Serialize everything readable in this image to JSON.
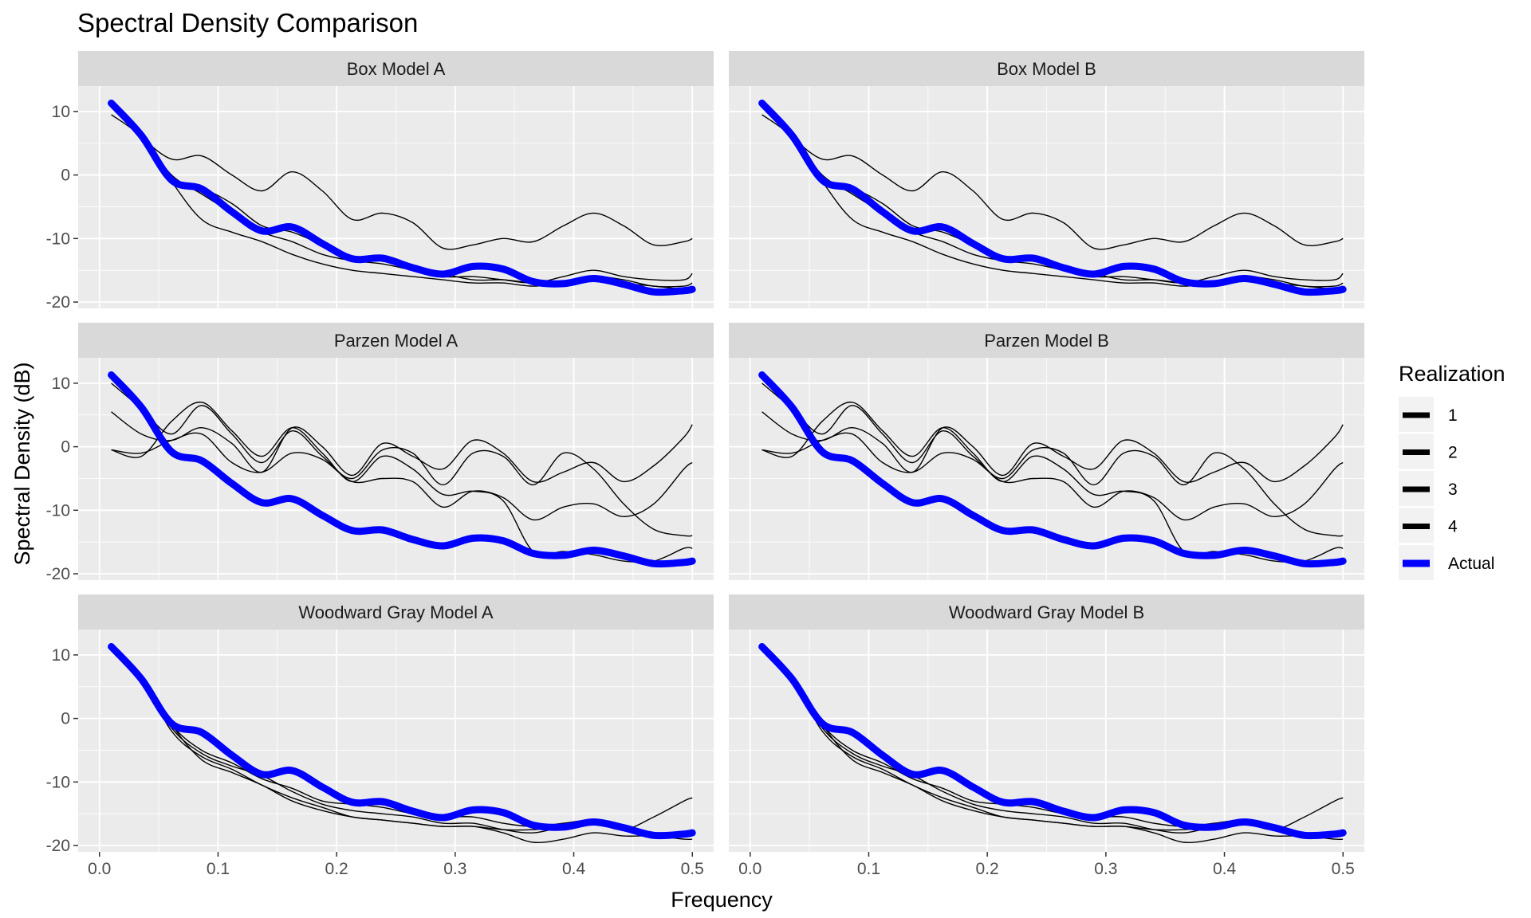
{
  "chart_data": {
    "type": "line",
    "title": "Spectral Density Comparison",
    "xlabel": "Frequency",
    "ylabel": "Spectral Density (dB)",
    "xlim": [
      0,
      0.5
    ],
    "ylim": [
      -21,
      14
    ],
    "x_ticks": [
      0,
      0.1,
      0.2,
      0.3,
      0.4,
      0.5
    ],
    "x_tick_labels": [
      "0.0",
      "0.1",
      "0.2",
      "0.3",
      "0.4",
      "0.5"
    ],
    "y_ticks": [
      -20,
      -10,
      0,
      10
    ],
    "y_tick_labels": [
      "-20",
      "-10",
      "0",
      "10"
    ],
    "grid": true,
    "legend": {
      "title": "Realization",
      "placement": "right",
      "entries": [
        {
          "label": "1",
          "color": "#000000"
        },
        {
          "label": "2",
          "color": "#000000"
        },
        {
          "label": "3",
          "color": "#000000"
        },
        {
          "label": "4",
          "color": "#000000"
        },
        {
          "label": "Actual",
          "color": "#0000ff"
        }
      ]
    },
    "colors": {
      "realization": "#000000",
      "actual": "#0000ff",
      "panel_bg": "#ebebeb",
      "strip_bg": "#d9d9d9",
      "grid": "#ffffff"
    },
    "x": [
      0.01,
      0.0354,
      0.0608,
      0.0862,
      0.1117,
      0.1371,
      0.1625,
      0.1879,
      0.2133,
      0.2387,
      0.2642,
      0.2896,
      0.315,
      0.3404,
      0.3658,
      0.3913,
      0.4167,
      0.4421,
      0.4675,
      0.4929,
      0.5
    ],
    "actual": [
      11.3,
      6.2,
      -0.8,
      -2.2,
      -5.8,
      -8.8,
      -8.2,
      -10.8,
      -13.2,
      -13.1,
      -14.6,
      -15.6,
      -14.4,
      -14.8,
      -16.8,
      -17.1,
      -16.3,
      -17.2,
      -18.4,
      -18.2,
      -18.0
    ],
    "panels": [
      {
        "name": "Box Model A",
        "series": [
          {
            "name": "1",
            "values": [
              11.5,
              6.0,
              -0.5,
              -2.0,
              -4.5,
              -8.0,
              -9.0,
              -11.0,
              -13.0,
              -13.5,
              -14.5,
              -15.5,
              -16.5,
              -16.5,
              -17.0,
              -17.0,
              -16.0,
              -16.5,
              -17.5,
              -17.5,
              -17.0
            ]
          },
          {
            "name": "2",
            "values": [
              11.0,
              6.0,
              2.5,
              3.0,
              0.0,
              -2.5,
              0.5,
              -2.5,
              -7.0,
              -6.0,
              -7.5,
              -11.5,
              -11.0,
              -10.0,
              -10.5,
              -8.0,
              -6.0,
              -8.0,
              -11.0,
              -10.5,
              -10.0
            ]
          },
          {
            "name": "3",
            "values": [
              9.5,
              6.0,
              0.0,
              -3.0,
              -6.0,
              -9.0,
              -10.5,
              -12.5,
              -13.5,
              -14.0,
              -15.0,
              -16.0,
              -16.0,
              -16.5,
              -17.0,
              -16.0,
              -15.0,
              -16.0,
              -16.5,
              -16.5,
              -15.5
            ]
          },
          {
            "name": "4",
            "values": [
              11.5,
              6.5,
              -1.0,
              -7.0,
              -9.0,
              -10.5,
              -12.5,
              -14.0,
              -15.0,
              -15.5,
              -16.0,
              -16.5,
              -17.0,
              -17.0,
              -17.5,
              -17.0,
              -16.0,
              -17.0,
              -17.5,
              -18.0,
              -18.0
            ]
          }
        ]
      },
      {
        "name": "Box Model B",
        "series": [
          {
            "name": "1",
            "values": [
              11.5,
              6.0,
              -0.5,
              -2.0,
              -4.5,
              -8.0,
              -9.0,
              -11.0,
              -13.0,
              -13.5,
              -14.5,
              -15.5,
              -16.5,
              -16.5,
              -17.0,
              -17.0,
              -16.0,
              -16.5,
              -17.5,
              -17.5,
              -17.0
            ]
          },
          {
            "name": "2",
            "values": [
              11.0,
              6.0,
              2.5,
              3.0,
              0.0,
              -2.5,
              0.5,
              -2.5,
              -7.0,
              -6.0,
              -7.5,
              -11.5,
              -11.0,
              -10.0,
              -10.5,
              -8.0,
              -6.0,
              -8.0,
              -11.0,
              -10.5,
              -10.0
            ]
          },
          {
            "name": "3",
            "values": [
              9.5,
              6.0,
              0.0,
              -3.0,
              -6.0,
              -9.0,
              -10.5,
              -12.5,
              -13.5,
              -14.0,
              -15.0,
              -16.0,
              -16.0,
              -16.5,
              -17.0,
              -16.0,
              -15.0,
              -16.0,
              -16.5,
              -16.5,
              -15.5
            ]
          },
          {
            "name": "4",
            "values": [
              11.5,
              6.5,
              -1.0,
              -7.0,
              -9.0,
              -10.5,
              -12.5,
              -14.0,
              -15.0,
              -15.5,
              -16.0,
              -16.5,
              -17.0,
              -17.0,
              -17.5,
              -17.0,
              -16.0,
              -17.0,
              -17.5,
              -18.0,
              -18.0
            ]
          }
        ]
      },
      {
        "name": "Parzen Model A",
        "series": [
          {
            "name": "1",
            "values": [
              10.0,
              6.0,
              2.0,
              6.5,
              2.0,
              -2.5,
              2.5,
              -1.5,
              -5.0,
              -0.5,
              -1.0,
              -6.0,
              -1.0,
              -1.5,
              -6.0,
              -1.0,
              -3.5,
              -9.0,
              -13.0,
              -14.0,
              -14.0
            ]
          },
          {
            "name": "2",
            "values": [
              5.5,
              2.0,
              1.0,
              3.0,
              0.5,
              -4.0,
              3.0,
              0.0,
              -4.5,
              0.5,
              -1.5,
              -3.5,
              1.0,
              -1.0,
              -5.5,
              -4.0,
              -2.5,
              -5.5,
              -3.0,
              1.5,
              3.5
            ]
          },
          {
            "name": "3",
            "values": [
              -0.5,
              -1.5,
              4.0,
              7.0,
              2.5,
              -1.5,
              3.0,
              -1.0,
              -5.5,
              -1.5,
              -3.5,
              -7.5,
              -7.0,
              -8.5,
              -16.5,
              -16.5,
              -17.0,
              -18.0,
              -18.0,
              -16.0,
              -16.0
            ]
          },
          {
            "name": "4",
            "values": [
              -0.5,
              -1.0,
              1.0,
              2.0,
              -2.5,
              -4.0,
              -1.0,
              -2.0,
              -5.5,
              -5.0,
              -5.5,
              -9.5,
              -7.0,
              -8.0,
              -11.5,
              -9.5,
              -9.0,
              -11.0,
              -9.0,
              -3.5,
              -2.5
            ]
          }
        ]
      },
      {
        "name": "Parzen Model B",
        "series": [
          {
            "name": "1",
            "values": [
              10.0,
              6.0,
              2.0,
              6.5,
              2.0,
              -2.5,
              2.5,
              -1.5,
              -5.0,
              -0.5,
              -1.0,
              -6.0,
              -1.0,
              -1.5,
              -6.0,
              -1.0,
              -3.5,
              -9.0,
              -13.0,
              -14.0,
              -14.0
            ]
          },
          {
            "name": "2",
            "values": [
              5.5,
              2.0,
              1.0,
              3.0,
              0.5,
              -4.0,
              3.0,
              0.0,
              -4.5,
              0.5,
              -1.5,
              -3.5,
              1.0,
              -1.0,
              -5.5,
              -4.0,
              -2.5,
              -5.5,
              -3.0,
              1.5,
              3.5
            ]
          },
          {
            "name": "3",
            "values": [
              -0.5,
              -1.5,
              4.0,
              7.0,
              2.5,
              -1.5,
              3.0,
              -1.0,
              -5.5,
              -1.5,
              -3.5,
              -7.5,
              -7.0,
              -8.5,
              -16.5,
              -16.5,
              -17.0,
              -18.0,
              -18.0,
              -16.0,
              -16.0
            ]
          },
          {
            "name": "4",
            "values": [
              -0.5,
              -1.0,
              1.0,
              2.0,
              -2.5,
              -4.0,
              -1.0,
              -2.0,
              -5.5,
              -5.0,
              -5.5,
              -9.5,
              -7.0,
              -8.0,
              -11.5,
              -9.5,
              -9.0,
              -11.0,
              -9.0,
              -3.5,
              -2.5
            ]
          }
        ]
      },
      {
        "name": "Woodward Gray Model A",
        "series": [
          {
            "name": "1",
            "values": [
              11.5,
              6.5,
              -1.5,
              -5.5,
              -7.5,
              -9.0,
              -11.5,
              -13.5,
              -14.5,
              -15.0,
              -15.5,
              -16.5,
              -16.5,
              -17.5,
              -18.0,
              -17.0,
              -16.0,
              -17.0,
              -18.0,
              -18.5,
              -18.5
            ]
          },
          {
            "name": "2",
            "values": [
              11.5,
              6.5,
              -2.0,
              -6.0,
              -8.0,
              -10.5,
              -12.5,
              -14.0,
              -15.5,
              -16.0,
              -16.5,
              -17.0,
              -17.0,
              -18.0,
              -19.5,
              -19.0,
              -18.0,
              -18.5,
              -18.5,
              -19.0,
              -19.0
            ]
          },
          {
            "name": "3",
            "values": [
              11.5,
              6.5,
              -1.0,
              -5.0,
              -7.0,
              -9.5,
              -11.0,
              -13.0,
              -13.5,
              -14.0,
              -15.0,
              -15.5,
              -15.5,
              -16.5,
              -17.0,
              -16.5,
              -16.0,
              -17.0,
              -18.0,
              -18.0,
              -17.5
            ]
          },
          {
            "name": "4",
            "values": [
              11.5,
              6.5,
              -1.0,
              -6.5,
              -8.5,
              -10.5,
              -13.0,
              -14.5,
              -15.5,
              -16.0,
              -16.5,
              -17.0,
              -17.0,
              -17.5,
              -17.5,
              -17.0,
              -16.5,
              -17.5,
              -15.5,
              -13.0,
              -12.5
            ]
          }
        ]
      },
      {
        "name": "Woodward Gray Model B",
        "series": [
          {
            "name": "1",
            "values": [
              11.5,
              6.5,
              -1.5,
              -5.5,
              -7.5,
              -9.0,
              -11.5,
              -13.5,
              -14.5,
              -15.0,
              -15.5,
              -16.5,
              -16.5,
              -17.5,
              -18.0,
              -17.0,
              -16.0,
              -17.0,
              -18.0,
              -18.5,
              -18.5
            ]
          },
          {
            "name": "2",
            "values": [
              11.5,
              6.5,
              -2.0,
              -6.0,
              -8.0,
              -10.5,
              -12.5,
              -14.0,
              -15.5,
              -16.0,
              -16.5,
              -17.0,
              -17.0,
              -18.0,
              -19.5,
              -19.0,
              -18.0,
              -18.5,
              -18.5,
              -19.0,
              -19.0
            ]
          },
          {
            "name": "3",
            "values": [
              11.5,
              6.5,
              -1.0,
              -5.0,
              -7.0,
              -9.5,
              -11.0,
              -13.0,
              -13.5,
              -14.0,
              -15.0,
              -15.5,
              -15.5,
              -16.5,
              -17.0,
              -16.5,
              -16.0,
              -17.0,
              -18.0,
              -18.0,
              -17.5
            ]
          },
          {
            "name": "4",
            "values": [
              11.5,
              6.5,
              -1.0,
              -6.5,
              -8.5,
              -10.5,
              -13.0,
              -14.5,
              -15.5,
              -16.0,
              -16.5,
              -17.0,
              -17.0,
              -17.5,
              -17.5,
              -17.0,
              -16.5,
              -17.5,
              -15.5,
              -13.0,
              -12.5
            ]
          }
        ]
      }
    ]
  }
}
